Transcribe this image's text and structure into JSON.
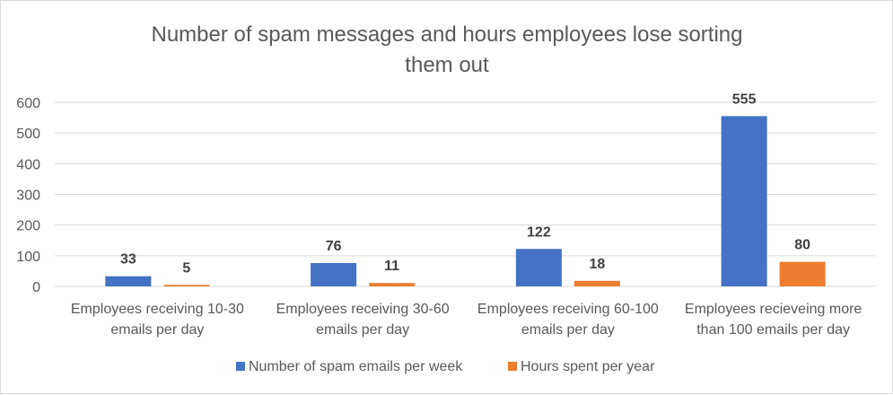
{
  "chart_data": {
    "type": "bar",
    "title": [
      "Number of spam messages and hours employees lose sorting",
      "them out"
    ],
    "categories": [
      [
        "Employees receiving 10-30",
        "emails per day"
      ],
      [
        "Employees receiving 30-60",
        "emails per day"
      ],
      [
        "Employees receiving 60-100",
        "emails per day"
      ],
      [
        "Employees recieveing more",
        "than 100 emails per day"
      ]
    ],
    "series": [
      {
        "name": "Number of spam emails per week",
        "color": "#4472c4",
        "values": [
          33,
          76,
          122,
          555
        ]
      },
      {
        "name": "Hours spent per year",
        "color": "#ed7d31",
        "values": [
          5,
          11,
          18,
          80
        ]
      }
    ],
    "ylim": [
      0,
      600
    ],
    "yticks": [
      0,
      100,
      200,
      300,
      400,
      500,
      600
    ],
    "grid": true,
    "data_labels": true,
    "legend": "bottom"
  }
}
